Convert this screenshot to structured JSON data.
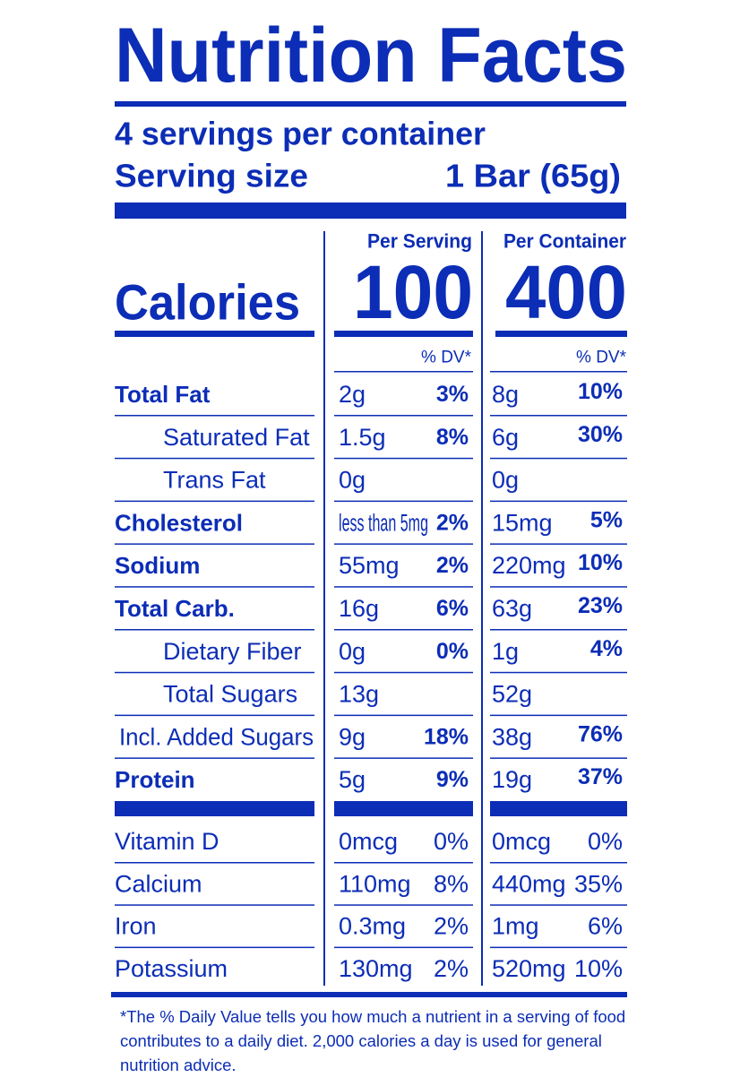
{
  "header": {
    "title": "Nutrition Facts",
    "servings": "4 servings per container",
    "serving_size_label": "Serving size",
    "serving_size": "1 Bar (65g)"
  },
  "calories_label": "Calories",
  "columns": [
    {
      "heading": "Per Serving",
      "calories": 100,
      "dv_heading": "% DV*"
    },
    {
      "heading": "Per Container",
      "calories": 400,
      "dv_heading": "% DV*"
    }
  ],
  "nutrients": [
    {
      "name": "Total Fat",
      "serving": [
        "2g",
        "3%"
      ],
      "container": [
        "8g",
        "10%"
      ]
    },
    {
      "name": "Saturated Fat",
      "serving": [
        "1.5g",
        "8%"
      ],
      "container": [
        "6g",
        "30%"
      ]
    },
    {
      "name": "Trans Fat",
      "serving": [
        "0g",
        null
      ],
      "container": [
        "0g",
        null
      ]
    },
    {
      "name": "Cholesterol",
      "serving": [
        "less than 5mg",
        "2%"
      ],
      "container": [
        "15mg",
        "5%"
      ]
    },
    {
      "name": "Sodium",
      "serving": [
        "55mg",
        "2%"
      ],
      "container": [
        "220mg",
        "10%"
      ]
    },
    {
      "name": "Total Carb.",
      "serving": [
        "16g",
        "6%"
      ],
      "container": [
        "63g",
        "23%"
      ]
    },
    {
      "name": "Dietary Fiber",
      "serving": [
        "0g",
        "0%"
      ],
      "container": [
        "1g",
        "4%"
      ]
    },
    {
      "name": "Total Sugars",
      "serving": [
        "13g",
        null
      ],
      "container": [
        "52g",
        null
      ]
    },
    {
      "name": "Incl. Added Sugars",
      "serving": [
        "9g",
        "18%"
      ],
      "container": [
        "38g",
        "76%"
      ]
    },
    {
      "name": "Protein",
      "serving": [
        "5g",
        "9%"
      ],
      "container": [
        "19g",
        "37%"
      ]
    }
  ],
  "vitamins": [
    {
      "name": "Vitamin D",
      "serving": [
        "0mcg",
        "0%"
      ],
      "container": [
        "0mcg",
        "0%"
      ]
    },
    {
      "name": "Calcium",
      "serving": [
        "110mg",
        "8%"
      ],
      "container": [
        "440mg",
        "35%"
      ]
    },
    {
      "name": "Iron",
      "serving": [
        "0.3mg",
        "2%"
      ],
      "container": [
        "1mg",
        "6%"
      ]
    },
    {
      "name": "Potassium",
      "serving": [
        "130mg",
        "2%"
      ],
      "container": [
        "520mg",
        "10%"
      ]
    }
  ],
  "footnote": "*The % Daily Value tells you how much a nutrient in a serving of food contributes to a daily diet. 2,000 calories a day is used for general nutrition advice."
}
